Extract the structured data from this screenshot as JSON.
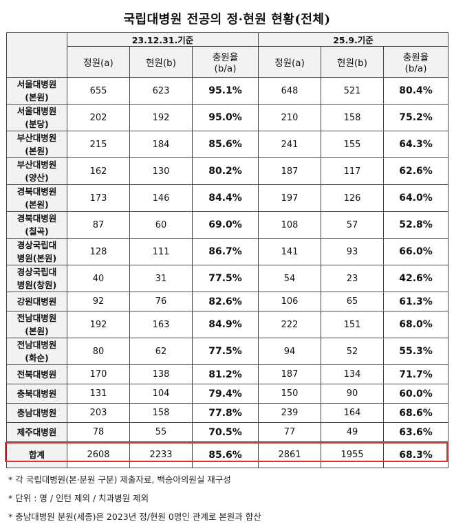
{
  "title": "국립대병원 전공의 정·현원 현황(전체)",
  "header": {
    "period1": "23.12.31.기준",
    "period2": "25.9.기준",
    "col_quota": "정원(a)",
    "col_current": "현원(b)",
    "col_rate_line1": "충원율",
    "col_rate_line2": "(b/a)"
  },
  "rows": [
    {
      "name1": "서울대병원",
      "name2": "(본원)",
      "q1": "655",
      "c1": "623",
      "r1": "95.1%",
      "q2": "648",
      "c2": "521",
      "r2": "80.4%"
    },
    {
      "name1": "서울대병원",
      "name2": "(분당)",
      "q1": "202",
      "c1": "192",
      "r1": "95.0%",
      "q2": "210",
      "c2": "158",
      "r2": "75.2%"
    },
    {
      "name1": "부산대병원",
      "name2": "(본원)",
      "q1": "215",
      "c1": "184",
      "r1": "85.6%",
      "q2": "241",
      "c2": "155",
      "r2": "64.3%"
    },
    {
      "name1": "부산대병원",
      "name2": "(양산)",
      "q1": "162",
      "c1": "130",
      "r1": "80.2%",
      "q2": "187",
      "c2": "117",
      "r2": "62.6%"
    },
    {
      "name1": "경북대병원",
      "name2": "(본원)",
      "q1": "173",
      "c1": "146",
      "r1": "84.4%",
      "q2": "197",
      "c2": "126",
      "r2": "64.0%"
    },
    {
      "name1": "경북대병원",
      "name2": "(칠곡)",
      "q1": "87",
      "c1": "60",
      "r1": "69.0%",
      "q2": "108",
      "c2": "57",
      "r2": "52.8%"
    },
    {
      "name1": "경상국립대",
      "name2": "병원(본원)",
      "q1": "128",
      "c1": "111",
      "r1": "86.7%",
      "q2": "141",
      "c2": "93",
      "r2": "66.0%"
    },
    {
      "name1": "경상국립대",
      "name2": "병원(창원)",
      "q1": "40",
      "c1": "31",
      "r1": "77.5%",
      "q2": "54",
      "c2": "23",
      "r2": "42.6%"
    },
    {
      "name1": "강원대병원",
      "name2": "",
      "q1": "92",
      "c1": "76",
      "r1": "82.6%",
      "q2": "106",
      "c2": "65",
      "r2": "61.3%"
    },
    {
      "name1": "전남대병원",
      "name2": "(본원)",
      "q1": "192",
      "c1": "163",
      "r1": "84.9%",
      "q2": "222",
      "c2": "151",
      "r2": "68.0%"
    },
    {
      "name1": "전남대병원",
      "name2": "(화순)",
      "q1": "80",
      "c1": "62",
      "r1": "77.5%",
      "q2": "94",
      "c2": "52",
      "r2": "55.3%"
    },
    {
      "name1": "전북대병원",
      "name2": "",
      "q1": "170",
      "c1": "138",
      "r1": "81.2%",
      "q2": "187",
      "c2": "134",
      "r2": "71.7%"
    },
    {
      "name1": "충북대병원",
      "name2": "",
      "q1": "131",
      "c1": "104",
      "r1": "79.4%",
      "q2": "150",
      "c2": "90",
      "r2": "60.0%"
    },
    {
      "name1": "충남대병원",
      "name2": "",
      "q1": "203",
      "c1": "158",
      "r1": "77.8%",
      "q2": "239",
      "c2": "164",
      "r2": "68.6%"
    },
    {
      "name1": "제주대병원",
      "name2": "",
      "q1": "78",
      "c1": "55",
      "r1": "70.5%",
      "q2": "77",
      "c2": "49",
      "r2": "63.6%"
    }
  ],
  "total": {
    "name": "합계",
    "q1": "2608",
    "c1": "2233",
    "r1": "85.6%",
    "q2": "2861",
    "c2": "1955",
    "r2": "68.3%"
  },
  "notes": [
    "* 각 국립대병원(본·분원 구분) 제출자료, 백승아의원실 재구성",
    "* 단위 : 명 / 인턴 제외 / 치과병원 제외",
    "* 충남대병원 분원(세종)은 2023년 정/현원 0명인 관계로 본원과 합산"
  ]
}
